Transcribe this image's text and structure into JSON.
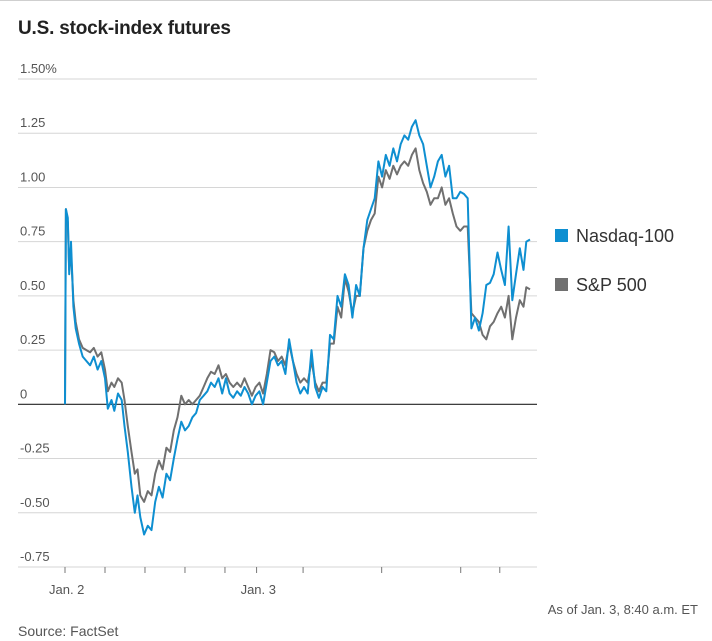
{
  "chart_data": {
    "type": "line",
    "title": "U.S. stock-index futures",
    "ylabel": "",
    "xlabel": "",
    "ylim": [
      -0.75,
      1.5
    ],
    "y_ticks": [
      "1.50%",
      "1.25",
      "1.00",
      "0.75",
      "0.50",
      "0.25",
      "0",
      "-0.25",
      "-0.50",
      "-0.75"
    ],
    "y_tick_values": [
      1.5,
      1.25,
      1.0,
      0.75,
      0.5,
      0.25,
      0,
      -0.25,
      -0.5,
      -0.75
    ],
    "x_range": [
      0,
      100
    ],
    "x_ticks": [
      {
        "label": "Jan. 2",
        "x": 0
      },
      {
        "label": "",
        "x": 8.6
      },
      {
        "label": "",
        "x": 17.2
      },
      {
        "label": "",
        "x": 25.8
      },
      {
        "label": "",
        "x": 34.4
      },
      {
        "label": "Jan. 3",
        "x": 41.2
      },
      {
        "label": "",
        "x": 51.2
      },
      {
        "label": "",
        "x": 68.1
      },
      {
        "label": "",
        "x": 85.1
      },
      {
        "label": "",
        "x": 93.5
      }
    ],
    "series": [
      {
        "name": "Nasdaq-100",
        "color": "#0e8fd1",
        "x": [
          0,
          0.2,
          0.6,
          0.9,
          1.3,
          1.8,
          2.3,
          3.0,
          3.8,
          4.6,
          5.4,
          6.2,
          7.0,
          7.8,
          8.6,
          9.2,
          10.0,
          10.6,
          11.4,
          12.2,
          12.8,
          13.5,
          14.3,
          15.0,
          15.6,
          16.2,
          17.0,
          17.8,
          18.6,
          19.4,
          20.2,
          21.0,
          21.8,
          22.6,
          23.4,
          24.2,
          25.0,
          25.8,
          26.6,
          27.4,
          28.2,
          29.0,
          29.8,
          30.6,
          31.4,
          32.2,
          33.0,
          33.8,
          34.6,
          35.4,
          36.2,
          37.0,
          37.8,
          38.6,
          39.4,
          40.2,
          41.0,
          41.8,
          42.6,
          43.4,
          44.2,
          45.0,
          45.8,
          46.6,
          47.4,
          48.2,
          49.0,
          49.8,
          50.6,
          51.4,
          52.2,
          53.0,
          53.8,
          54.6,
          55.4,
          56.2,
          57.0,
          57.8,
          58.6,
          59.4,
          60.2,
          61.0,
          61.8,
          62.6,
          63.4,
          64.2,
          65.0,
          65.8,
          66.6,
          67.4,
          68.2,
          69.0,
          69.8,
          70.6,
          71.4,
          72.2,
          73.0,
          73.8,
          74.6,
          75.4,
          76.2,
          77.0,
          77.8,
          78.6,
          79.4,
          80.2,
          81.0,
          81.8,
          82.6,
          83.4,
          84.2,
          85.0,
          85.8,
          86.6,
          87.4,
          88.2,
          89.0,
          89.8,
          90.6,
          91.4,
          92.2,
          93.0,
          93.8,
          94.6,
          95.4,
          96.2,
          97.0,
          97.8,
          98.6,
          99.2,
          100
        ],
        "y": [
          0.0,
          0.9,
          0.86,
          0.6,
          0.75,
          0.45,
          0.35,
          0.28,
          0.22,
          0.2,
          0.18,
          0.22,
          0.16,
          0.2,
          0.12,
          -0.02,
          0.02,
          -0.03,
          0.05,
          0.02,
          -0.1,
          -0.22,
          -0.38,
          -0.5,
          -0.42,
          -0.52,
          -0.6,
          -0.56,
          -0.58,
          -0.45,
          -0.38,
          -0.43,
          -0.32,
          -0.35,
          -0.25,
          -0.16,
          -0.08,
          -0.12,
          -0.1,
          -0.06,
          -0.04,
          0.02,
          0.04,
          0.06,
          0.1,
          0.08,
          0.12,
          0.05,
          0.12,
          0.05,
          0.03,
          0.06,
          0.04,
          0.08,
          0.05,
          0.0,
          0.04,
          0.06,
          0.0,
          0.1,
          0.2,
          0.22,
          0.18,
          0.2,
          0.14,
          0.3,
          0.2,
          0.1,
          0.05,
          0.08,
          0.05,
          0.25,
          0.08,
          0.03,
          0.08,
          0.06,
          0.32,
          0.3,
          0.5,
          0.45,
          0.6,
          0.55,
          0.4,
          0.55,
          0.5,
          0.72,
          0.85,
          0.9,
          0.95,
          1.12,
          1.05,
          1.15,
          1.1,
          1.18,
          1.12,
          1.2,
          1.24,
          1.22,
          1.28,
          1.31,
          1.24,
          1.2,
          1.1,
          1.0,
          1.05,
          1.12,
          1.15,
          1.05,
          1.1,
          0.95,
          0.95,
          0.98,
          0.97,
          0.95,
          0.35,
          0.4,
          0.34,
          0.42,
          0.55,
          0.56,
          0.6,
          0.7,
          0.62,
          0.55,
          0.82,
          0.48,
          0.6,
          0.72,
          0.62,
          0.75,
          0.76
        ]
      },
      {
        "name": "S&P 500",
        "color": "#707070",
        "x": [
          0,
          0.2,
          0.6,
          0.9,
          1.3,
          1.8,
          2.3,
          3.0,
          3.8,
          4.6,
          5.4,
          6.2,
          7.0,
          7.8,
          8.6,
          9.2,
          10.0,
          10.6,
          11.4,
          12.2,
          12.8,
          13.5,
          14.3,
          15.0,
          15.6,
          16.2,
          17.0,
          17.8,
          18.6,
          19.4,
          20.2,
          21.0,
          21.8,
          22.6,
          23.4,
          24.2,
          25.0,
          25.8,
          26.6,
          27.4,
          28.2,
          29.0,
          29.8,
          30.6,
          31.4,
          32.2,
          33.0,
          33.8,
          34.6,
          35.4,
          36.2,
          37.0,
          37.8,
          38.6,
          39.4,
          40.2,
          41.0,
          41.8,
          42.6,
          43.4,
          44.2,
          45.0,
          45.8,
          46.6,
          47.4,
          48.2,
          49.0,
          49.8,
          50.6,
          51.4,
          52.2,
          53.0,
          53.8,
          54.6,
          55.4,
          56.2,
          57.0,
          57.8,
          58.6,
          59.4,
          60.2,
          61.0,
          61.8,
          62.6,
          63.4,
          64.2,
          65.0,
          65.8,
          66.6,
          67.4,
          68.2,
          69.0,
          69.8,
          70.6,
          71.4,
          72.2,
          73.0,
          73.8,
          74.6,
          75.4,
          76.2,
          77.0,
          77.8,
          78.6,
          79.4,
          80.2,
          81.0,
          81.8,
          82.6,
          83.4,
          84.2,
          85.0,
          85.8,
          86.6,
          87.4,
          88.2,
          89.0,
          89.8,
          90.6,
          91.4,
          92.2,
          93.0,
          93.8,
          94.6,
          95.4,
          96.2,
          97.0,
          97.8,
          98.6,
          99.2,
          100
        ],
        "y": [
          0.0,
          0.9,
          0.84,
          0.62,
          0.7,
          0.48,
          0.38,
          0.3,
          0.26,
          0.25,
          0.24,
          0.26,
          0.22,
          0.24,
          0.16,
          0.06,
          0.1,
          0.08,
          0.12,
          0.1,
          0.02,
          -0.1,
          -0.22,
          -0.32,
          -0.3,
          -0.42,
          -0.45,
          -0.4,
          -0.42,
          -0.32,
          -0.26,
          -0.3,
          -0.2,
          -0.22,
          -0.12,
          -0.06,
          0.04,
          0.0,
          0.02,
          0.0,
          0.02,
          0.04,
          0.08,
          0.12,
          0.15,
          0.14,
          0.18,
          0.12,
          0.14,
          0.1,
          0.08,
          0.1,
          0.08,
          0.12,
          0.08,
          0.04,
          0.08,
          0.1,
          0.05,
          0.14,
          0.25,
          0.24,
          0.2,
          0.22,
          0.18,
          0.28,
          0.2,
          0.14,
          0.1,
          0.12,
          0.1,
          0.2,
          0.1,
          0.06,
          0.1,
          0.1,
          0.28,
          0.28,
          0.45,
          0.4,
          0.58,
          0.52,
          0.42,
          0.5,
          0.5,
          0.72,
          0.8,
          0.85,
          0.88,
          1.05,
          1.0,
          1.08,
          1.04,
          1.1,
          1.06,
          1.1,
          1.12,
          1.1,
          1.15,
          1.18,
          1.08,
          1.02,
          0.98,
          0.92,
          0.95,
          0.95,
          1.0,
          0.92,
          0.95,
          0.88,
          0.82,
          0.8,
          0.82,
          0.82,
          0.42,
          0.4,
          0.38,
          0.32,
          0.3,
          0.36,
          0.38,
          0.42,
          0.45,
          0.4,
          0.5,
          0.3,
          0.4,
          0.48,
          0.45,
          0.54,
          0.53
        ]
      }
    ],
    "legend": [
      {
        "name": "Nasdaq-100",
        "color": "#0e8fd1"
      },
      {
        "name": "S&P 500",
        "color": "#707070"
      }
    ],
    "legend_position": "right"
  },
  "footnote": "As of Jan. 3, 8:40 a.m. ET",
  "source": "Source: FactSet"
}
